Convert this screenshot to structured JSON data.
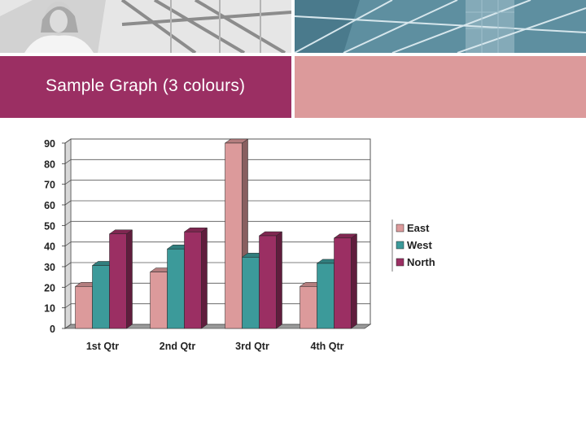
{
  "slide": {
    "title": "Sample Graph (3 colours)"
  },
  "chart_data": {
    "type": "bar",
    "style": "3d-clustered-column",
    "categories": [
      "1st Qtr",
      "2nd Qtr",
      "3rd Qtr",
      "4th Qtr"
    ],
    "series": [
      {
        "name": "East",
        "values": [
          20.4,
          27.4,
          90,
          20.4
        ],
        "color": "#dc9a9b"
      },
      {
        "name": "West",
        "values": [
          30.6,
          38.6,
          34.6,
          31.6
        ],
        "color": "#3c9a9a"
      },
      {
        "name": "North",
        "values": [
          45.9,
          46.9,
          45,
          43.9
        ],
        "color": "#9b2f63"
      }
    ],
    "ylim": [
      0,
      90
    ],
    "yticks": [
      0,
      10,
      20,
      30,
      40,
      50,
      60,
      70,
      80,
      90
    ],
    "grid": true,
    "legend": "right",
    "title": "",
    "xlabel": "",
    "ylabel": ""
  },
  "colors": {
    "title_band": "#9b2f63",
    "accent_band": "#dc9a9b",
    "photo_right": "#5e8fa0"
  }
}
